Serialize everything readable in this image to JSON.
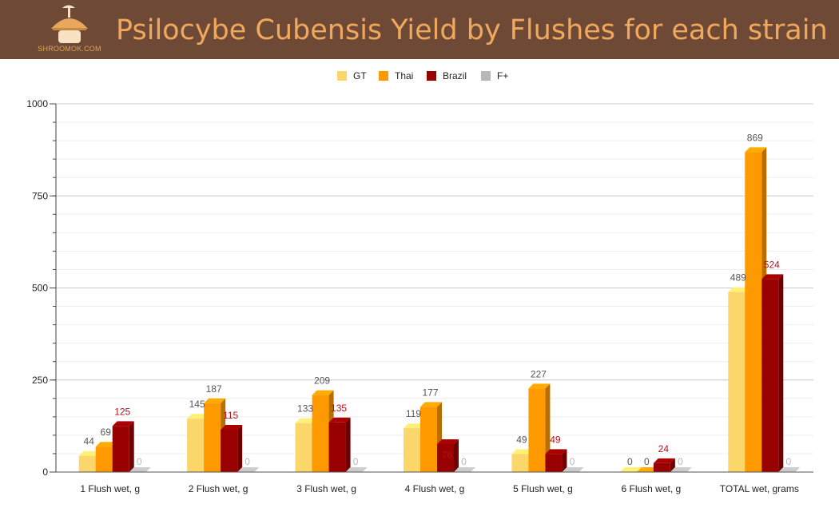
{
  "header": {
    "title": "Psilocybe Cubensis Yield by Flushes for each strain",
    "logo_text": "SHROOMOK.COM",
    "logo_icon": "mushroom-icon",
    "background": "#6e4a36",
    "title_color": "#f0a85c"
  },
  "chart_data": {
    "type": "bar",
    "title": "Psilocybe Cubensis Yield by Flushes for each strain",
    "categories": [
      "1 Flush wet, g",
      "2 Flush wet, g",
      "3 Flush wet, g",
      "4 Flush wet, g",
      "5 Flush wet, g",
      "6 Flush wet, g",
      "TOTAL wet, grams"
    ],
    "series": [
      {
        "name": "GT",
        "color": "#fad66b",
        "label_color": "#555555",
        "values": [
          44,
          145,
          133,
          119,
          49,
          0,
          489
        ]
      },
      {
        "name": "Thai",
        "color": "#ff9900",
        "label_color": "#555555",
        "values": [
          69,
          187,
          209,
          177,
          227,
          0,
          869
        ]
      },
      {
        "name": "Brazil",
        "color": "#990000",
        "label_color": "#b0121b",
        "values": [
          125,
          115,
          135,
          76,
          49,
          24,
          524
        ]
      },
      {
        "name": "F+",
        "color": "#b7b7b7",
        "label_color": "#b7b7b7",
        "values": [
          0,
          0,
          0,
          0,
          0,
          0,
          0
        ]
      }
    ],
    "ylim": [
      0,
      1000
    ],
    "yticks": [
      0,
      250,
      500,
      750,
      1000
    ],
    "grid": true,
    "legend": "top-center",
    "xlabel": "",
    "ylabel": ""
  }
}
